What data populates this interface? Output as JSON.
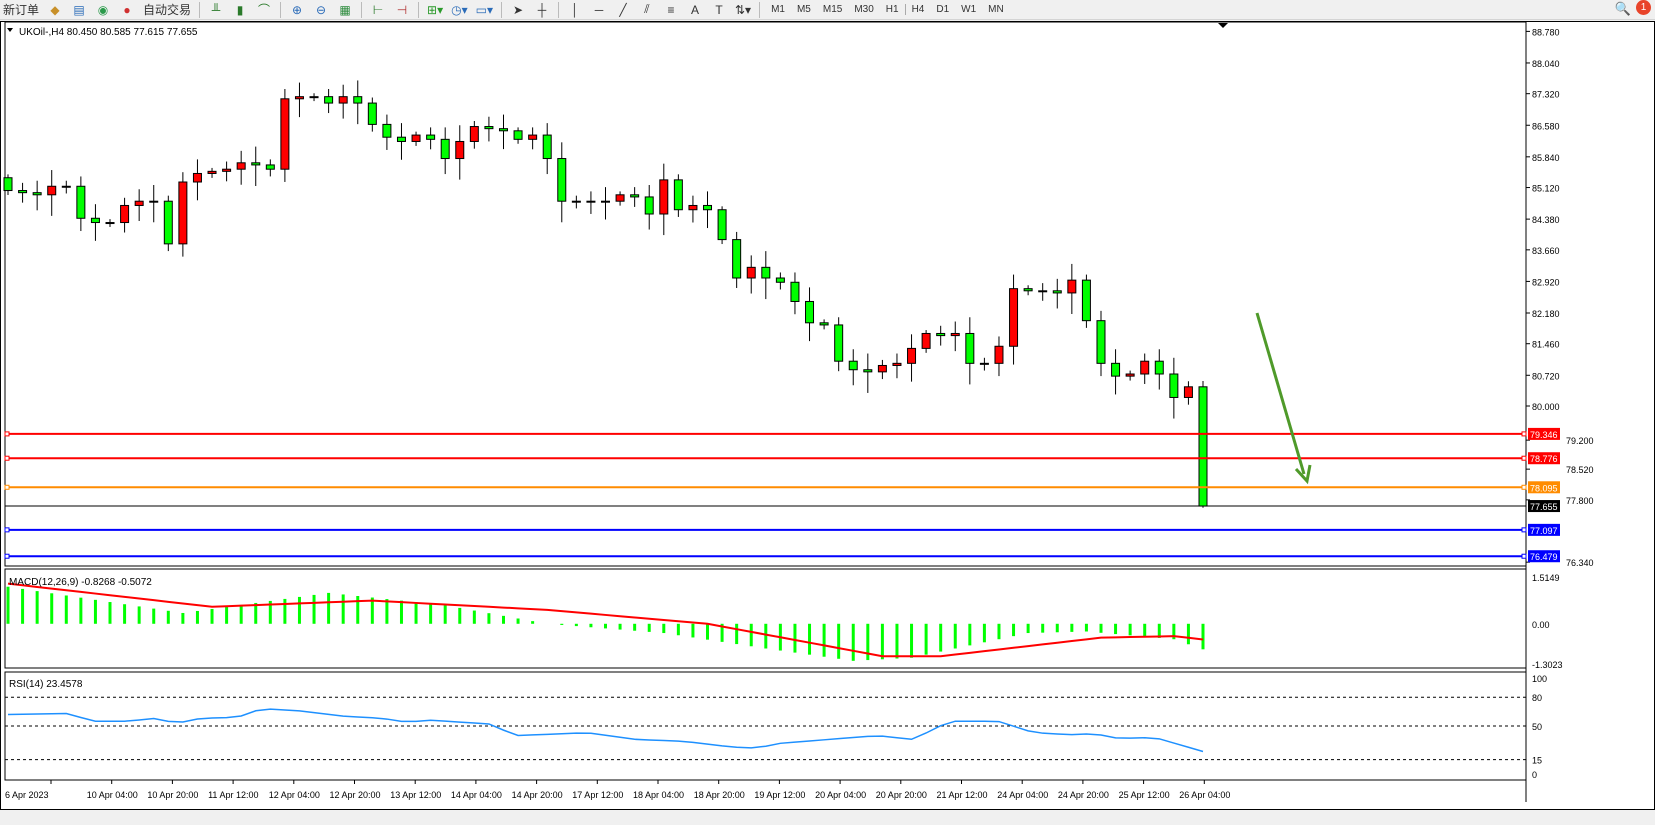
{
  "toolbar": {
    "new_order": "新订单",
    "auto_trading": "自动交易",
    "icons": [
      "new-order-icon",
      "navigator-icon",
      "market-watch-icon",
      "signals-icon",
      "auto-trading-icon",
      "bar-chart-icon",
      "candlestick-icon",
      "line-chart-icon",
      "zoom-in-icon",
      "zoom-out-icon",
      "tile-windows-icon",
      "chart-shift-icon",
      "autoscroll-icon",
      "indicators-icon",
      "periods-icon",
      "templates-icon",
      "cursor-icon",
      "crosshair-icon",
      "vertical-line-icon",
      "horizontal-line-icon",
      "trendline-icon",
      "equidistant-channel-icon",
      "fibonacci-icon",
      "text-icon",
      "text-label-icon",
      "arrows-icon"
    ],
    "timeframes": [
      "M1",
      "M5",
      "M15",
      "M30",
      "H1",
      "H4",
      "D1",
      "W1",
      "MN"
    ],
    "active_timeframe": "H4",
    "notification_count": "1"
  },
  "chart_info": {
    "symbol_line": "UKOil-,H4  80.450 80.585 77.615 77.655"
  },
  "colors": {
    "bear_candle": "#00ff00",
    "bull_candle": "#ff0000",
    "resistance": "#ff0000",
    "orange_level": "#ff8c00",
    "support": "#0000ff",
    "arrow": "#4f9a2a",
    "rsi": "#1e90ff",
    "macd_signal": "#ff0000",
    "macd_hist": "#00ff00"
  },
  "chart_data": [
    {
      "type": "candlestick",
      "title": "UKOil-,H4",
      "price_axis_ticks": [
        "88.780",
        "88.040",
        "87.320",
        "86.580",
        "85.840",
        "85.120",
        "84.380",
        "83.660",
        "82.920",
        "82.180",
        "81.460",
        "80.720",
        "80.000",
        "79.200",
        "78.520",
        "77.800",
        "76.340"
      ],
      "ylim": [
        76.25,
        89.0
      ],
      "levels": [
        {
          "value": "79.346",
          "color": "#ff0000"
        },
        {
          "value": "78.776",
          "color": "#ff0000"
        },
        {
          "value": "78.095",
          "color": "#ff8c00"
        },
        {
          "value": "77.655",
          "color": "#000000",
          "current": true
        },
        {
          "value": "77.097",
          "color": "#0000ff"
        },
        {
          "value": "76.479",
          "color": "#0000ff"
        }
      ],
      "closes": [
        85.05,
        85.0,
        84.95,
        85.15,
        85.15,
        84.4,
        84.3,
        84.3,
        84.7,
        84.8,
        84.8,
        83.8,
        85.25,
        85.45,
        85.5,
        85.55,
        85.7,
        85.65,
        85.55,
        87.2,
        87.25,
        87.25,
        87.1,
        87.25,
        87.1,
        86.6,
        86.3,
        86.2,
        86.35,
        86.25,
        85.8,
        86.2,
        86.55,
        86.5,
        86.45,
        86.25,
        86.35,
        85.8,
        84.8,
        84.8,
        84.8,
        84.8,
        84.95,
        84.9,
        84.5,
        85.3,
        84.6,
        84.7,
        84.6,
        83.9,
        83.0,
        83.25,
        83.0,
        82.9,
        82.45,
        81.95,
        81.9,
        81.05,
        80.85,
        80.8,
        80.95,
        81.0,
        81.35,
        81.7,
        81.65,
        81.7,
        81.0,
        81.0,
        81.4,
        82.75,
        82.7,
        82.7,
        82.65,
        82.95,
        82.0,
        81.0,
        80.7,
        80.75,
        81.05,
        80.75,
        80.2,
        80.45,
        77.655
      ],
      "first_open": 85.35,
      "last_candle": {
        "open": 80.45,
        "high": 80.585,
        "low": 77.615,
        "close": 77.655
      },
      "time_labels": [
        "6 Apr 2023",
        "10 Apr 04:00",
        "10 Apr 20:00",
        "11 Apr 12:00",
        "12 Apr 04:00",
        "12 Apr 20:00",
        "13 Apr 12:00",
        "14 Apr 04:00",
        "14 Apr 20:00",
        "17 Apr 12:00",
        "18 Apr 04:00",
        "18 Apr 20:00",
        "19 Apr 12:00",
        "20 Apr 04:00",
        "20 Apr 20:00",
        "21 Apr 12:00",
        "24 Apr 04:00",
        "24 Apr 20:00",
        "25 Apr 12:00",
        "26 Apr 04:00"
      ],
      "annotation": "down-arrow"
    },
    {
      "type": "macd",
      "label": "MACD(12,26,9) -0.8268 -0.5072",
      "axis_ticks": [
        "1.5149",
        "0.00",
        "-1.3023"
      ],
      "ylim": [
        -1.3023,
        1.5149
      ],
      "histogram_keys": [
        [
          0,
          1.2
        ],
        [
          12,
          0.35
        ],
        [
          22,
          1.0
        ],
        [
          30,
          0.6
        ],
        [
          37,
          0.0
        ],
        [
          45,
          -0.3
        ],
        [
          52,
          -0.8
        ],
        [
          58,
          -1.2
        ],
        [
          62,
          -1.1
        ],
        [
          70,
          -0.3
        ],
        [
          74,
          -0.25
        ],
        [
          80,
          -0.5
        ],
        [
          82,
          -0.8268
        ]
      ],
      "signal_keys": [
        [
          0,
          1.3
        ],
        [
          14,
          0.55
        ],
        [
          25,
          0.75
        ],
        [
          37,
          0.45
        ],
        [
          48,
          0.0
        ],
        [
          60,
          -1.05
        ],
        [
          64,
          -1.05
        ],
        [
          75,
          -0.45
        ],
        [
          80,
          -0.4
        ],
        [
          82,
          -0.5072
        ]
      ]
    },
    {
      "type": "rsi",
      "label": "RSI(14) 23.4578",
      "axis_ticks": [
        "100",
        "80",
        "50",
        "15",
        "0"
      ],
      "levels": [
        80,
        50,
        15
      ],
      "ylim": [
        0,
        100
      ],
      "keys": [
        [
          0,
          62
        ],
        [
          5,
          63
        ],
        [
          7,
          55
        ],
        [
          10,
          55
        ],
        [
          12,
          58
        ],
        [
          14,
          53
        ],
        [
          16,
          58
        ],
        [
          19,
          59
        ],
        [
          21,
          68
        ],
        [
          24,
          66
        ],
        [
          28,
          60
        ],
        [
          31,
          58
        ],
        [
          33,
          54
        ],
        [
          35,
          56
        ],
        [
          40,
          52
        ],
        [
          42,
          40
        ],
        [
          48,
          43
        ],
        [
          52,
          36
        ],
        [
          56,
          34
        ],
        [
          60,
          28
        ],
        [
          62,
          27
        ],
        [
          64,
          32
        ],
        [
          68,
          36
        ],
        [
          72,
          40
        ],
        [
          75,
          36
        ],
        [
          78,
          55
        ],
        [
          82,
          55
        ],
        [
          85,
          43
        ],
        [
          88,
          41
        ],
        [
          90,
          42
        ],
        [
          92,
          37
        ],
        [
          95,
          38
        ],
        [
          99,
          23.4578
        ]
      ]
    }
  ]
}
